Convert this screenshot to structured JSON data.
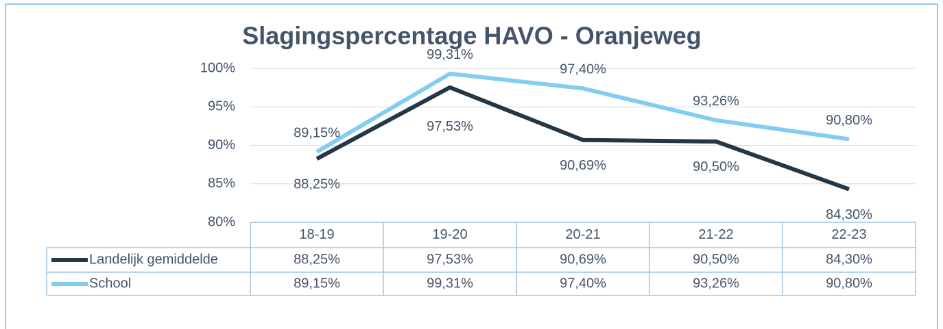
{
  "chart_data": {
    "type": "line",
    "title": "Slagingspercentage HAVO - Oranjeweg",
    "categories": [
      "18-19",
      "19-20",
      "20-21",
      "21-22",
      "22-23"
    ],
    "series": [
      {
        "name": "Landelijk gemiddelde",
        "color": "#243746",
        "values": [
          88.25,
          97.53,
          90.69,
          90.5,
          84.3
        ],
        "value_labels": [
          "88,25%",
          "97,53%",
          "90,69%",
          "90,50%",
          "84,30%"
        ]
      },
      {
        "name": "School",
        "color": "#82cdf0",
        "values": [
          89.15,
          99.31,
          97.4,
          93.26,
          90.8
        ],
        "value_labels": [
          "89,15%",
          "99,31%",
          "97,40%",
          "93,26%",
          "90,80%"
        ]
      }
    ],
    "ylim": [
      80,
      100
    ],
    "yticks": [
      {
        "value": 80,
        "label": "80%"
      },
      {
        "value": 85,
        "label": "85%"
      },
      {
        "value": 90,
        "label": "90%"
      },
      {
        "value": 95,
        "label": "95%"
      },
      {
        "value": 100,
        "label": "100%"
      }
    ],
    "grid": true,
    "data_table": true
  }
}
